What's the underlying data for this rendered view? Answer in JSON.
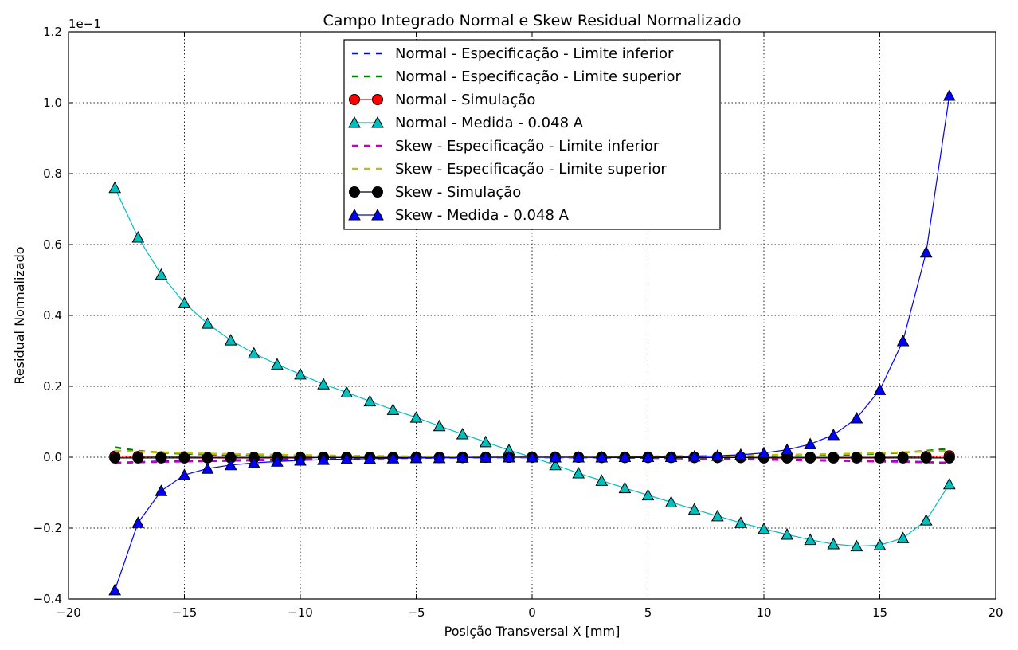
{
  "chart_data": {
    "type": "line",
    "title": "Campo Integrado Normal e Skew Residual Normalizado",
    "xlabel": "Posição Transversal X [mm]",
    "ylabel": "Residual Normalizado",
    "y_offset_label": "1e−1",
    "xlim": [
      -20,
      20
    ],
    "ylim": [
      -0.4,
      1.2
    ],
    "xticks": [
      -20,
      -15,
      -10,
      -5,
      0,
      5,
      10,
      15,
      20
    ],
    "xtick_labels": [
      "−20",
      "−15",
      "−10",
      "−5",
      "0",
      "5",
      "10",
      "15",
      "20"
    ],
    "yticks": [
      -0.4,
      -0.2,
      0.0,
      0.2,
      0.4,
      0.6,
      0.8,
      1.0,
      1.2
    ],
    "ytick_labels": [
      "−0.4",
      "−0.2",
      "0.0",
      "0.2",
      "0.4",
      "0.6",
      "0.8",
      "1.0",
      "1.2"
    ],
    "grid": true,
    "legend_position": "top-center",
    "x": [
      -18,
      -17,
      -16,
      -15,
      -14,
      -13,
      -12,
      -11,
      -10,
      -9,
      -8,
      -7,
      -6,
      -5,
      -4,
      -3,
      -2,
      -1,
      0,
      1,
      2,
      3,
      4,
      5,
      6,
      7,
      8,
      9,
      10,
      11,
      12,
      13,
      14,
      15,
      16,
      17,
      18
    ],
    "series": [
      {
        "name": "Normal - Especificação - Limite inferior",
        "color": "#0000ff",
        "style": "dashed",
        "marker": "none",
        "values": [
          -0.016,
          -0.014,
          -0.012,
          -0.011,
          -0.01,
          -0.009,
          -0.008,
          -0.007,
          -0.006,
          -0.005,
          -0.004,
          -0.003,
          -0.002,
          -0.001,
          -0.001,
          0,
          0,
          0,
          0,
          0,
          0,
          0,
          -0.001,
          -0.001,
          -0.002,
          -0.003,
          -0.004,
          -0.005,
          -0.006,
          -0.007,
          -0.008,
          -0.009,
          -0.01,
          -0.011,
          -0.012,
          -0.014,
          -0.016
        ]
      },
      {
        "name": "Normal - Especificação - Limite superior",
        "color": "#008000",
        "style": "dashed",
        "marker": "none",
        "values": [
          0.028,
          0.018,
          0.013,
          0.01,
          0.008,
          0.006,
          0.005,
          0.004,
          0.003,
          0.003,
          0.002,
          0.002,
          0.001,
          0.001,
          0.001,
          0,
          0,
          0,
          0,
          0,
          0,
          0,
          0.001,
          0.001,
          0.001,
          0.002,
          0.002,
          0.003,
          0.003,
          0.004,
          0.005,
          0.006,
          0.008,
          0.01,
          0.013,
          0.018,
          0.024
        ]
      },
      {
        "name": "Normal - Simulação",
        "color": "#ff0000",
        "style": "solid",
        "marker": "circle",
        "values": [
          0.003,
          0.002,
          0.001,
          0.001,
          0,
          0,
          0,
          0,
          0,
          0,
          0,
          0,
          0,
          0,
          0,
          0,
          0,
          0,
          0,
          0,
          0,
          0,
          0,
          0,
          0,
          0,
          0,
          0,
          0,
          0,
          0,
          0,
          0,
          0,
          0.001,
          0.002,
          0.004
        ]
      },
      {
        "name": "Normal - Medida - 0.048 A",
        "color": "#00bfbf",
        "style": "solid",
        "marker": "triangle",
        "values": [
          0.76,
          0.62,
          0.515,
          0.435,
          0.377,
          0.33,
          0.293,
          0.262,
          0.234,
          0.206,
          0.183,
          0.158,
          0.134,
          0.112,
          0.088,
          0.065,
          0.043,
          0.02,
          0.0,
          -0.022,
          -0.045,
          -0.066,
          -0.087,
          -0.107,
          -0.127,
          -0.147,
          -0.166,
          -0.185,
          -0.202,
          -0.218,
          -0.233,
          -0.245,
          -0.251,
          -0.248,
          -0.228,
          -0.178,
          -0.076
        ]
      },
      {
        "name": "Skew - Especificação - Limite inferior",
        "color": "#bf00bf",
        "style": "dashed",
        "marker": "none",
        "values": [
          -0.016,
          -0.014,
          -0.013,
          -0.012,
          -0.011,
          -0.01,
          -0.009,
          -0.008,
          -0.007,
          -0.006,
          -0.005,
          -0.004,
          -0.003,
          -0.002,
          -0.001,
          -0.001,
          0,
          0,
          0,
          0,
          0,
          -0.001,
          -0.001,
          -0.002,
          -0.003,
          -0.004,
          -0.005,
          -0.006,
          -0.007,
          -0.008,
          -0.009,
          -0.01,
          -0.011,
          -0.012,
          -0.013,
          -0.014,
          -0.016
        ]
      },
      {
        "name": "Skew - Especificação - Limite superior",
        "color": "#bfbf00",
        "style": "dashed",
        "marker": "none",
        "values": [
          0.018,
          0.016,
          0.014,
          0.012,
          0.01,
          0.009,
          0.008,
          0.007,
          0.006,
          0.005,
          0.004,
          0.004,
          0.003,
          0.002,
          0.002,
          0.001,
          0.001,
          0,
          0,
          0,
          0.001,
          0.001,
          0.002,
          0.002,
          0.003,
          0.004,
          0.004,
          0.005,
          0.006,
          0.007,
          0.008,
          0.009,
          0.01,
          0.012,
          0.014,
          0.016,
          0.018
        ]
      },
      {
        "name": "Skew - Simulação",
        "color": "#000000",
        "style": "solid",
        "marker": "circle",
        "values": [
          -0.002,
          -0.002,
          -0.002,
          -0.002,
          -0.002,
          -0.002,
          -0.002,
          -0.002,
          -0.002,
          -0.001,
          -0.001,
          -0.001,
          -0.001,
          -0.001,
          -0.001,
          -0.001,
          0,
          0,
          0,
          0,
          0,
          -0.001,
          -0.001,
          -0.001,
          -0.001,
          -0.001,
          -0.001,
          -0.001,
          -0.002,
          -0.002,
          -0.002,
          -0.002,
          -0.002,
          -0.002,
          -0.002,
          -0.002,
          -0.002
        ]
      },
      {
        "name": "Skew - Medida - 0.048 A",
        "color": "#0000ff",
        "style": "solid",
        "marker": "triangle",
        "values": [
          -0.375,
          -0.185,
          -0.095,
          -0.05,
          -0.032,
          -0.022,
          -0.016,
          -0.012,
          -0.009,
          -0.007,
          -0.005,
          -0.004,
          -0.003,
          -0.002,
          -0.002,
          -0.001,
          -0.001,
          0,
          0,
          0,
          0,
          0,
          0.001,
          0.001,
          0.001,
          0.002,
          0.004,
          0.007,
          0.012,
          0.021,
          0.037,
          0.063,
          0.11,
          0.19,
          0.328,
          0.578,
          1.02
        ]
      }
    ]
  }
}
